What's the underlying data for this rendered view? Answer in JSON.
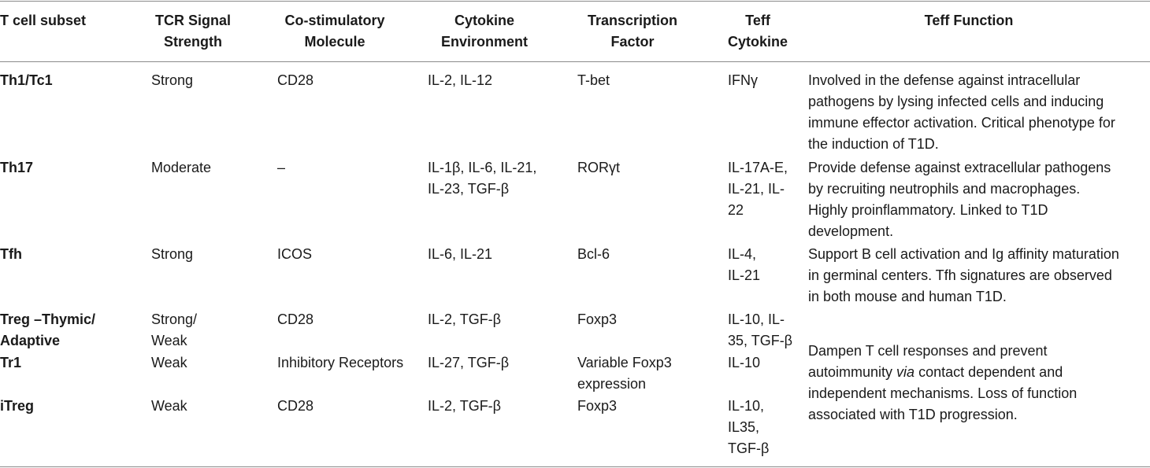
{
  "headers": {
    "subset": "T cell subset",
    "tcr_1": "TCR Signal",
    "tcr_2": "Strength",
    "costim_1": "Co-stimulatory",
    "costim_2": "Molecule",
    "cytenv_1": "Cytokine",
    "cytenv_2": "Environment",
    "tf_1": "Transcription",
    "tf_2": "Factor",
    "teffcyt_1": "Teff",
    "teffcyt_2": "Cytokine",
    "function": "Teff Function"
  },
  "rows": [
    {
      "subset": "Th1/Tc1",
      "tcr": "Strong",
      "costim": "CD28",
      "cytenv_1": "IL-2, IL-12",
      "tf": "T-bet",
      "teffcyt_1": "IFNγ",
      "func_1": "Involved in the defense against intracellular",
      "func_2": "pathogens by lysing infected cells and inducing",
      "func_3": "immune effector activation. Critical phenotype for",
      "func_4": "the induction of T1D."
    },
    {
      "subset": "Th17",
      "tcr": "Moderate",
      "costim": "–",
      "cytenv_1": "IL-1β, IL-6, IL-21,",
      "cytenv_2": "IL-23, TGF-β",
      "tf": "RORγt",
      "teffcyt_1": "IL-17A-E,",
      "teffcyt_2": "IL-21, IL-",
      "teffcyt_3": "22",
      "func_1": "Provide defense against extracellular pathogens",
      "func_2": "by recruiting neutrophils and macrophages.",
      "func_3": "Highly proinflammatory. Linked to T1D",
      "func_4": "development."
    },
    {
      "subset": "Tfh",
      "tcr": "Strong",
      "costim": "ICOS",
      "cytenv_1": "IL-6, IL-21",
      "tf": "Bcl-6",
      "teffcyt_1": "IL-4,",
      "teffcyt_2": "IL-21",
      "func_1": "Support B cell activation and Ig affinity maturation",
      "func_2": "in germinal centers. Tfh signatures are observed",
      "func_3": "in both mouse and human T1D."
    },
    {
      "subset_1": "Treg –Thymic/",
      "subset_2": "Adaptive",
      "tcr_1": "Strong/",
      "tcr_2": "Weak",
      "costim": "CD28",
      "cytenv_1": "IL-2, TGF-β",
      "tf": "Foxp3",
      "teffcyt_1": "IL-10, IL-",
      "teffcyt_2": "35, TGF-β"
    },
    {
      "subset": "Tr1",
      "tcr": "Weak",
      "costim": "Inhibitory Receptors",
      "cytenv_1": "IL-27, TGF-β",
      "tf_1": "Variable Foxp3",
      "tf_2": "expression",
      "teffcyt_1": "IL-10"
    },
    {
      "subset": "iTreg",
      "tcr": "Weak",
      "costim": "CD28",
      "cytenv_1": "IL-2, TGF-β",
      "tf": "Foxp3",
      "teffcyt_1": "IL-10,",
      "teffcyt_2": "IL35,",
      "teffcyt_3": "TGF-β"
    }
  ],
  "merged_function": {
    "line_1": "Dampen T cell responses and prevent",
    "line_2_pre": "autoimmunity ",
    "line_2_italic": "via",
    "line_2_post": " contact dependent and",
    "line_3": "independent mechanisms. Loss of function",
    "line_4": "associated with T1D progression."
  }
}
